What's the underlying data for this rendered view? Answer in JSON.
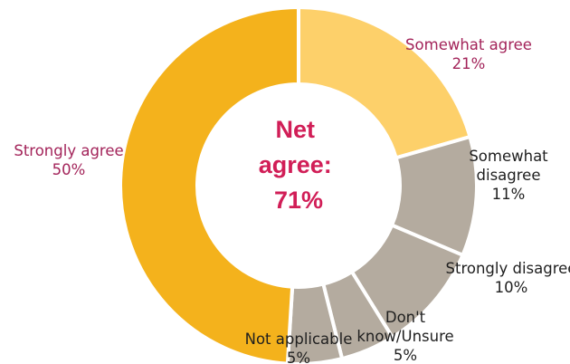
{
  "chart_data": {
    "type": "pie",
    "variant": "donut",
    "slices": [
      {
        "label_lines": [
          "Somewhat agree"
        ],
        "value": 21,
        "value_text": "21%",
        "color": "#fdd06a",
        "label_color": "#a3245a"
      },
      {
        "label_lines": [
          "Somewhat",
          "disagree"
        ],
        "value": 11,
        "value_text": "11%",
        "color": "#b4ab9f",
        "label_color": "#1f1f1f"
      },
      {
        "label_lines": [
          "Strongly disagree"
        ],
        "value": 10,
        "value_text": "10%",
        "color": "#b4ab9f",
        "label_color": "#1f1f1f"
      },
      {
        "label_lines": [
          "Don't",
          "know/Unsure"
        ],
        "value": 5,
        "value_text": "5%",
        "color": "#b4ab9f",
        "label_color": "#1f1f1f"
      },
      {
        "label_lines": [
          "Not applicable"
        ],
        "value": 5,
        "value_text": "5%",
        "color": "#b4ab9f",
        "label_color": "#1f1f1f"
      },
      {
        "label_lines": [
          "Strongly agree"
        ],
        "value": 50,
        "value_text": "50%",
        "color": "#f4b21c",
        "label_color": "#a3245a"
      }
    ],
    "center_lines": [
      "Net",
      "agree:",
      "71%"
    ],
    "center_color": "#d11e57",
    "separator_color": "#ffffff"
  }
}
